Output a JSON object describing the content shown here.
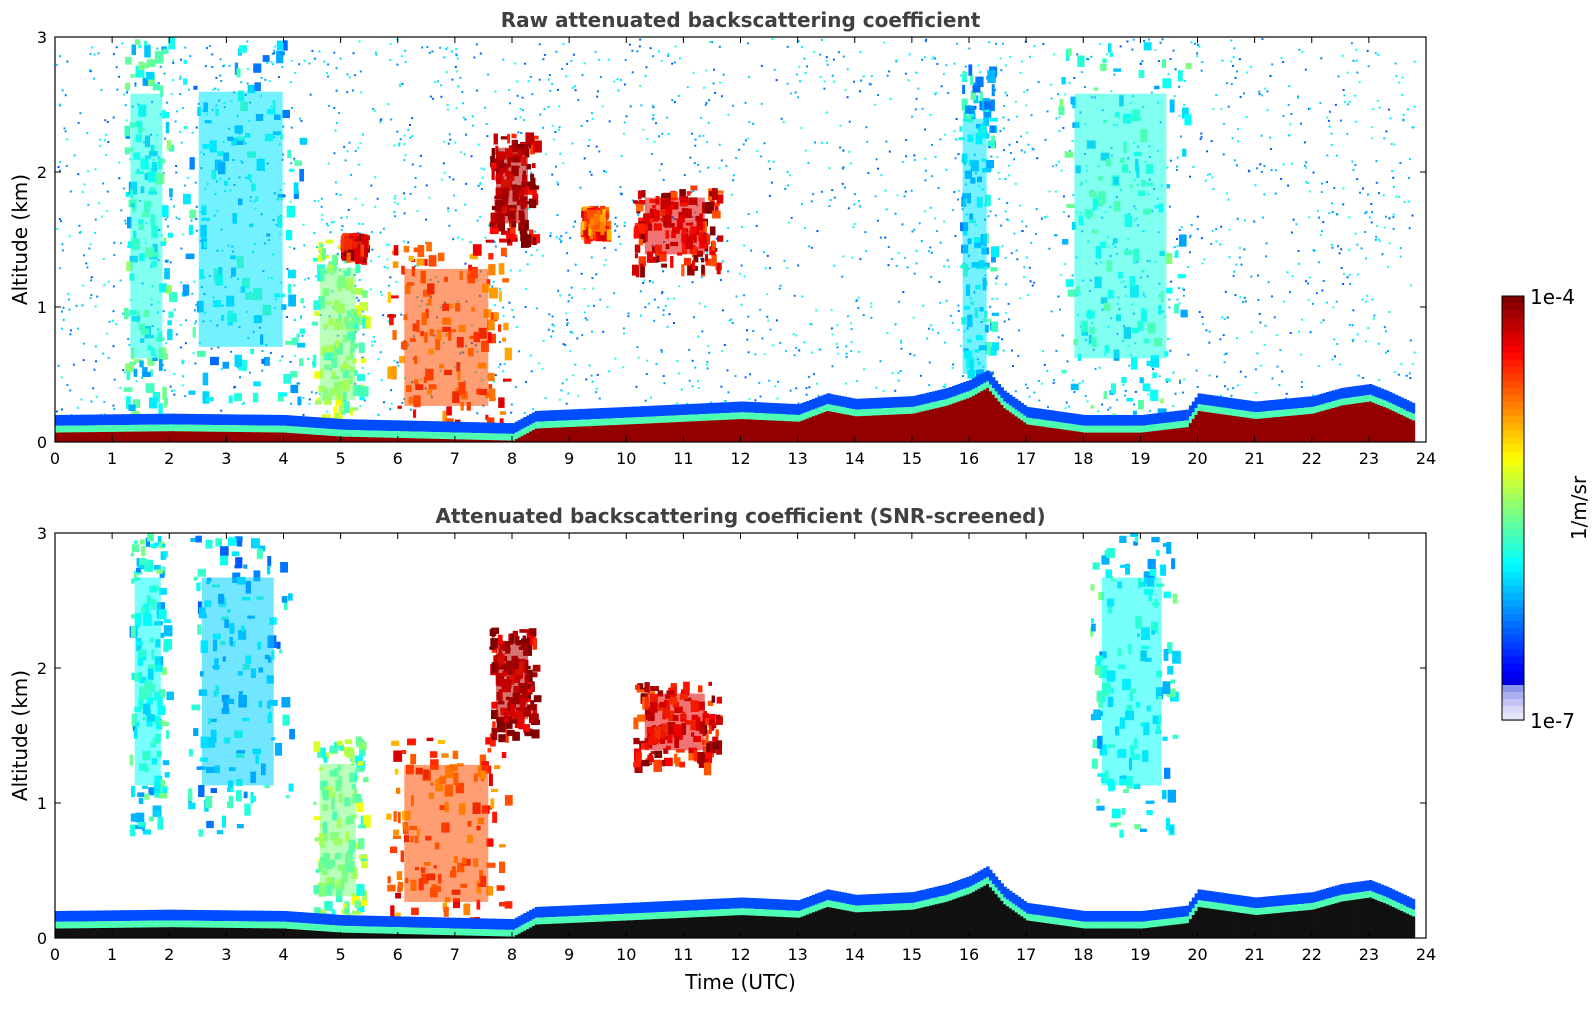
{
  "chart_data": [
    {
      "type": "heatmap",
      "title": "Raw attenuated backscattering coefficient",
      "xlabel": "",
      "ylabel": "Altitude (km)",
      "xlim": [
        0,
        24
      ],
      "ylim": [
        0,
        3
      ],
      "xticks": [
        "0",
        "1",
        "2",
        "3",
        "4",
        "5",
        "6",
        "7",
        "8",
        "9",
        "10",
        "11",
        "12",
        "13",
        "14",
        "15",
        "16",
        "17",
        "18",
        "19",
        "20",
        "21",
        "22",
        "23",
        "24"
      ],
      "yticks": [
        "0",
        "1",
        "2",
        "3"
      ],
      "boundary_layer_top_km": [
        [
          0,
          0.12
        ],
        [
          2,
          0.13
        ],
        [
          4,
          0.12
        ],
        [
          5,
          0.09
        ],
        [
          6,
          0.08
        ],
        [
          8,
          0.06
        ],
        [
          8.4,
          0.15
        ],
        [
          10,
          0.18
        ],
        [
          11,
          0.2
        ],
        [
          12,
          0.22
        ],
        [
          13,
          0.2
        ],
        [
          13.5,
          0.28
        ],
        [
          14,
          0.24
        ],
        [
          15,
          0.26
        ],
        [
          15.6,
          0.32
        ],
        [
          16,
          0.38
        ],
        [
          16.3,
          0.45
        ],
        [
          16.6,
          0.3
        ],
        [
          17,
          0.18
        ],
        [
          18,
          0.12
        ],
        [
          19,
          0.12
        ],
        [
          19.8,
          0.16
        ],
        [
          20,
          0.28
        ],
        [
          21,
          0.22
        ],
        [
          22,
          0.26
        ],
        [
          22.5,
          0.32
        ],
        [
          23,
          0.35
        ],
        [
          23.3,
          0.3
        ],
        [
          23.8,
          0.2
        ]
      ],
      "features": [
        {
          "t0": 1.2,
          "t1": 2.0,
          "z0": 0.2,
          "z1": 3.0,
          "level": 0.4
        },
        {
          "t0": 2.2,
          "t1": 4.3,
          "z0": 0.3,
          "z1": 3.0,
          "level": 0.35
        },
        {
          "t0": 4.5,
          "t1": 5.4,
          "z0": 0.1,
          "z1": 1.5,
          "level": 0.5
        },
        {
          "t0": 5.0,
          "t1": 5.4,
          "z0": 1.4,
          "z1": 1.55,
          "level": 0.9
        },
        {
          "t0": 5.8,
          "t1": 7.9,
          "z0": 0.05,
          "z1": 1.5,
          "level": 0.8
        },
        {
          "t0": 7.6,
          "t1": 8.4,
          "z0": 1.5,
          "z1": 2.3,
          "level": 0.95
        },
        {
          "t0": 9.2,
          "t1": 9.6,
          "z0": 1.55,
          "z1": 1.75,
          "level": 0.8
        },
        {
          "t0": 10.1,
          "t1": 11.6,
          "z0": 1.3,
          "z1": 1.9,
          "level": 0.9
        },
        {
          "t0": 15.8,
          "t1": 16.4,
          "z0": 0.1,
          "z1": 2.8,
          "level": 0.35
        },
        {
          "t0": 17.5,
          "t1": 19.8,
          "z0": 0.2,
          "z1": 3.0,
          "level": 0.4
        }
      ]
    },
    {
      "type": "heatmap",
      "title": "Attenuated backscattering coefficient (SNR-screened)",
      "xlabel": "Time (UTC)",
      "ylabel": "Altitude (km)",
      "xlim": [
        0,
        24
      ],
      "ylim": [
        0,
        3
      ],
      "xticks": [
        "0",
        "1",
        "2",
        "3",
        "4",
        "5",
        "6",
        "7",
        "8",
        "9",
        "10",
        "11",
        "12",
        "13",
        "14",
        "15",
        "16",
        "17",
        "18",
        "19",
        "20",
        "21",
        "22",
        "23",
        "24"
      ],
      "yticks": [
        "0",
        "1",
        "2",
        "3"
      ],
      "features": [
        {
          "t0": 1.3,
          "t1": 1.95,
          "z0": 0.8,
          "z1": 3.0,
          "level": 0.38
        },
        {
          "t0": 2.3,
          "t1": 4.1,
          "z0": 0.8,
          "z1": 3.0,
          "level": 0.33
        },
        {
          "t0": 4.5,
          "t1": 5.4,
          "z0": 0.1,
          "z1": 1.5,
          "level": 0.5
        },
        {
          "t0": 5.8,
          "t1": 7.9,
          "z0": 0.05,
          "z1": 1.5,
          "level": 0.8
        },
        {
          "t0": 7.6,
          "t1": 8.4,
          "z0": 1.5,
          "z1": 2.3,
          "level": 0.95
        },
        {
          "t0": 10.1,
          "t1": 11.6,
          "z0": 1.3,
          "z1": 1.9,
          "level": 0.9
        },
        {
          "t0": 18.1,
          "t1": 19.6,
          "z0": 0.8,
          "z1": 3.0,
          "level": 0.38
        }
      ]
    }
  ],
  "colorbar": {
    "label": "1/m/sr",
    "max_label": "1e-4",
    "min_label": "1e-7",
    "min": 1e-07,
    "max": 0.0001,
    "scale": "log",
    "colormap": "jet"
  }
}
